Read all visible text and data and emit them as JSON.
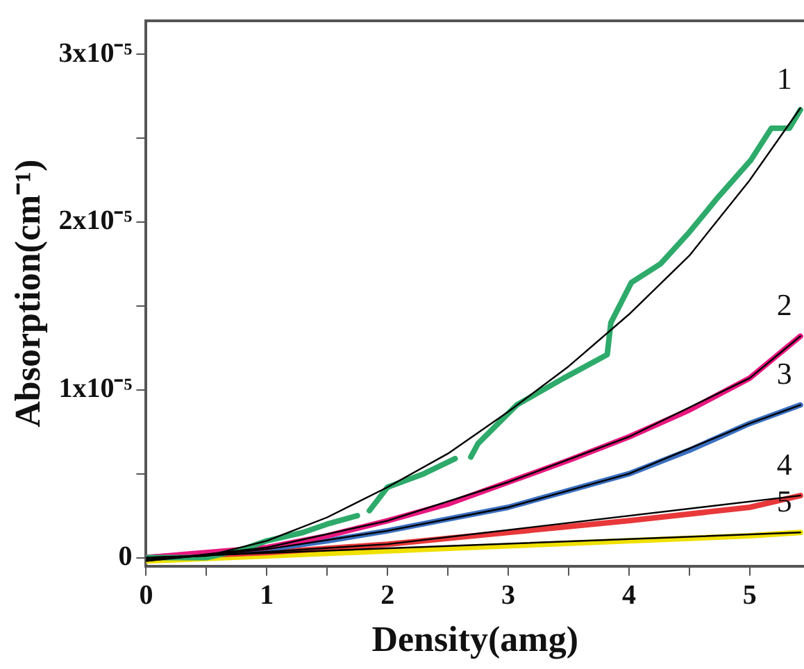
{
  "chart_data": {
    "type": "line",
    "xlabel": "Density(amg)",
    "ylabel": "Absorption(cm⁻¹)",
    "xlim": [
      0,
      5.45
    ],
    "ylim": [
      -5e-07,
      3.2e-05
    ],
    "xticks": [
      0,
      {
        "value": 0.5,
        "label": null
      },
      1,
      {
        "value": 1.5,
        "label": null
      },
      2,
      {
        "value": 2.5,
        "label": null
      },
      3,
      {
        "value": 3.5,
        "label": null
      },
      4,
      {
        "value": 4.5,
        "label": null
      },
      5
    ],
    "yticks": [
      0,
      {
        "value": 5e-06,
        "label": null
      },
      {
        "value": 1e-05,
        "label": "1x10⁻⁵"
      },
      {
        "value": 1.5e-05,
        "label": null
      },
      {
        "value": 2e-05,
        "label": "2x10⁻⁵"
      },
      {
        "value": 2.5e-05,
        "label": null
      },
      {
        "value": 3e-05,
        "label": "3x10⁻⁵"
      }
    ],
    "grid": false,
    "legend": false,
    "marker": "none",
    "line_style": "solid",
    "series": [
      {
        "color": "#2eaa6a",
        "x": [
          0,
          0.5,
          0.8,
          1,
          1.3,
          1.5,
          1.75,
          1.8,
          1.85,
          2,
          2.3,
          2.56,
          2.62,
          2.69,
          2.75,
          3.07,
          3.46,
          3.82,
          3.85,
          4.02,
          4.26,
          4.5,
          4.74,
          5.01,
          5.18,
          5.33,
          5.42
        ],
        "values": [
          0,
          0,
          5e-07,
          1e-06,
          1.5e-06,
          2e-06,
          2.5e-06,
          null,
          2.8e-06,
          4.2e-06,
          5e-06,
          5.9e-06,
          null,
          6e-06,
          6.8e-06,
          9.1e-06,
          1.07e-05,
          1.21e-05,
          1.4e-05,
          1.64e-05,
          1.75e-05,
          1.94e-05,
          2.15e-05,
          2.37e-05,
          2.56e-05,
          2.56e-05,
          2.67e-05
        ]
      },
      {
        "color": "#e8177f",
        "x": [
          0,
          1,
          1.5,
          2,
          2.5,
          3,
          3.5,
          4,
          4.5,
          5,
          5.42
        ],
        "values": [
          0,
          6e-07,
          1.3e-06,
          2.2e-06,
          3.2e-06,
          4.5e-06,
          5.8e-06,
          7.2e-06,
          8.8e-06,
          1.07e-05,
          1.32e-05
        ]
      },
      {
        "color": "#3a6fc0",
        "x": [
          0,
          1,
          1.5,
          2,
          2.5,
          3,
          3.5,
          4,
          4.5,
          5,
          5.42
        ],
        "values": [
          0,
          5e-07,
          1e-06,
          1.6e-06,
          2.3e-06,
          3e-06,
          4e-06,
          5e-06,
          6.4e-06,
          8e-06,
          9.1e-06
        ]
      },
      {
        "color": "#e8383a",
        "x": [
          0,
          1,
          2,
          3,
          4,
          5,
          5.42
        ],
        "values": [
          0,
          3e-07,
          8e-07,
          1.5e-06,
          2.2e-06,
          3e-06,
          3.7e-06
        ]
      },
      {
        "color": "#f0e000",
        "x": [
          0,
          1,
          2,
          3,
          4,
          5,
          5.42
        ],
        "values": [
          -2e-07,
          1e-07,
          4e-07,
          7e-07,
          1e-06,
          1.3e-06,
          1.5e-06
        ]
      },
      {
        "color": "#000000",
        "x": [
          0,
          0.5,
          1,
          1.5,
          2,
          2.5,
          3,
          3.5,
          4,
          4.5,
          5,
          5.42
        ],
        "values": [
          0,
          1e-07,
          1e-06,
          2.4e-06,
          4.2e-06,
          6.2e-06,
          8.7e-06,
          1.14e-05,
          1.45e-05,
          1.8e-05,
          2.25e-05,
          2.68e-05
        ]
      },
      {
        "color": "#000000",
        "x": [
          0,
          1,
          2,
          3,
          4,
          5,
          5.42
        ],
        "values": [
          -2e-07,
          6e-07,
          2.2e-06,
          4.5e-06,
          7.2e-06,
          1.07e-05,
          1.32e-05
        ]
      },
      {
        "color": "#000000",
        "x": [
          0,
          1,
          2,
          3,
          4,
          5,
          5.42
        ],
        "values": [
          -2e-07,
          5e-07,
          1.6e-06,
          3e-06,
          5e-06,
          8e-06,
          9.1e-06
        ]
      },
      {
        "color": "#000000",
        "x": [
          0,
          2,
          5.42
        ],
        "values": [
          -1e-07,
          8e-07,
          3.7e-06
        ]
      },
      {
        "color": "#000000",
        "x": [
          0,
          5.42
        ],
        "values": [
          0,
          1.5e-06
        ]
      }
    ],
    "annotations": [
      "1",
      "2",
      "3",
      "4",
      "5"
    ]
  }
}
